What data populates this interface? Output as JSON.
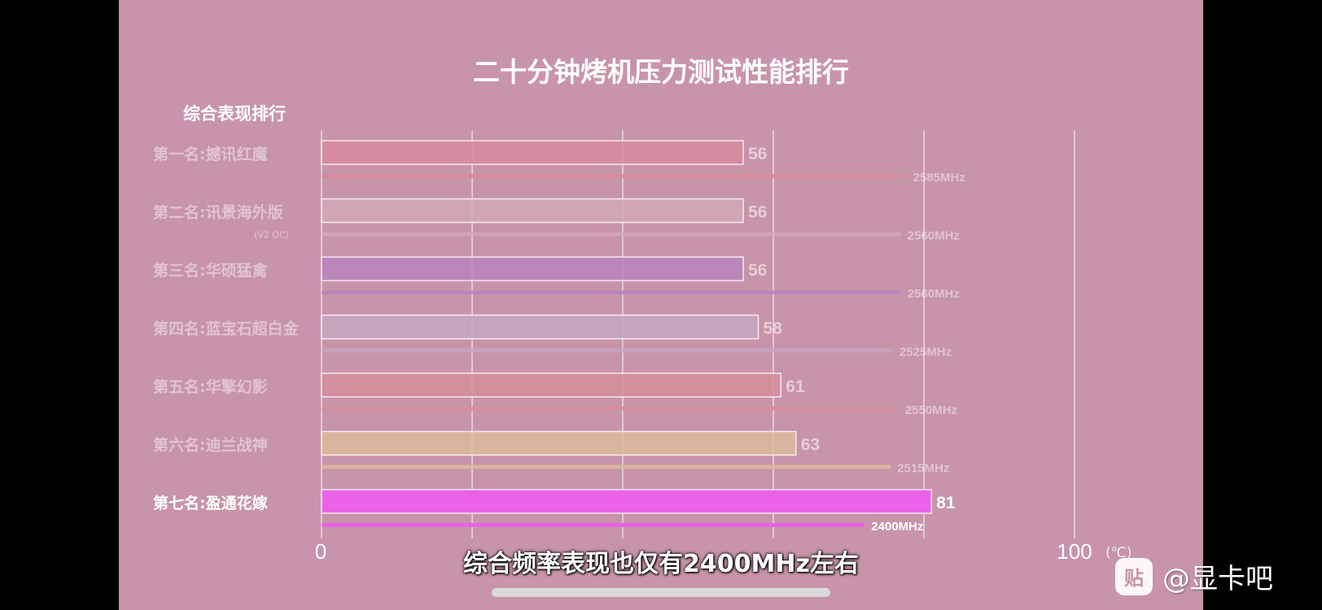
{
  "chart_data": {
    "type": "bar",
    "title": "二十分钟烤机压力测试性能排行",
    "subtitle": "综合表现排行",
    "unit": "(℃)",
    "xlim": [
      0,
      100
    ],
    "tick_labels": [
      "0",
      "100"
    ],
    "categories": [
      {
        "label": "第一名:撼讯红魔",
        "note": "",
        "color": "#d88a9c",
        "bold": false
      },
      {
        "label": "第二名:讯景海外版",
        "note": "(V2 OC)",
        "color": "#d3a8b8",
        "bold": false
      },
      {
        "label": "第三名:华硕猛禽",
        "note": "",
        "color": "#b985bd",
        "bold": false
      },
      {
        "label": "第四名:蓝宝石超白金",
        "note": "",
        "color": "#c7a6c1",
        "bold": false
      },
      {
        "label": "第五名:华擎幻影",
        "note": "",
        "color": "#d68e9c",
        "bold": false
      },
      {
        "label": "第六名:迪兰战神",
        "note": "",
        "color": "#dcbb9f",
        "bold": false
      },
      {
        "label": "第七名:盈通花嫁",
        "note": "",
        "color": "#ea62e8",
        "bold": true
      }
    ],
    "series": [
      {
        "name": "temperature",
        "values": [
          56,
          56,
          56,
          58,
          61,
          63,
          81
        ]
      },
      {
        "name": "frequency",
        "values": [
          2585,
          2560,
          2560,
          2525,
          2550,
          2515,
          2400
        ],
        "labels": [
          "2585MHz",
          "2560MHz",
          "2560MHz",
          "2525MHz",
          "2550MHz",
          "2515MHz",
          "2400MHz"
        ]
      }
    ],
    "grid": true
  },
  "caption": "综合频率表现也仅有2400MHz左右",
  "watermark": {
    "icon_char": "贴",
    "icon_name": "tieba-icon",
    "text": "@显卡吧"
  }
}
